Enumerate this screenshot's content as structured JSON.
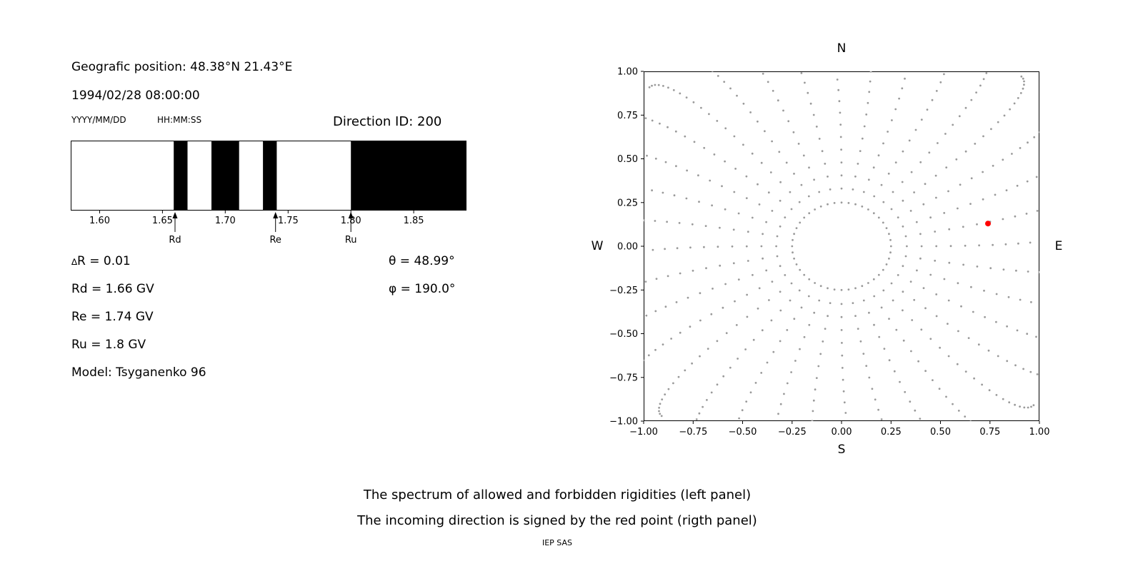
{
  "header": {
    "position": "Geografic position: 48.38°N 21.43°E",
    "datetime": "1994/02/28 08:00:00",
    "date_format_hint": "YYYY/MM/DD",
    "time_format_hint": "HH:MM:SS",
    "direction_id": "Direction ID: 200"
  },
  "params": {
    "delta_symbol": "∆",
    "delta_rest": "R = 0.01",
    "rd": "Rd = 1.66 GV",
    "re": "Re = 1.74 GV",
    "ru": "Ru = 1.8 GV",
    "model": "Model: Tsyganenko 96",
    "theta": "θ = 48.99°",
    "phi": "φ = 190.0°"
  },
  "caption": {
    "line1": "The spectrum of allowed and forbidden rigidities (left panel)",
    "line2": "The incoming direction is signed by the red point (rigth panel)",
    "credit": "IEP SAS"
  },
  "chart_data": [
    {
      "type": "bar",
      "subtype": "band-spectrum",
      "panel": "left",
      "description": "Allowed (white) and forbidden (black) rigidity bands in GV",
      "xlim": [
        1.577,
        1.892
      ],
      "xticks": [
        1.6,
        1.65,
        1.7,
        1.75,
        1.8,
        1.85
      ],
      "forbidden_bands_gv": [
        [
          1.659,
          1.67
        ],
        [
          1.689,
          1.711
        ],
        [
          1.73,
          1.741
        ],
        [
          1.8,
          1.892
        ]
      ],
      "markers": [
        {
          "label": "Rd",
          "x": 1.66
        },
        {
          "label": "Re",
          "x": 1.74
        },
        {
          "label": "Ru",
          "x": 1.8
        }
      ],
      "band_color": "#000000",
      "background": "#ffffff"
    },
    {
      "type": "scatter",
      "panel": "right",
      "description": "Asymptotic directions starburst; incoming direction marked by red point",
      "xlim": [
        -1.0,
        1.0
      ],
      "ylim": [
        -1.0,
        1.0
      ],
      "xticks": [
        -1.0,
        -0.75,
        -0.5,
        -0.25,
        0.0,
        0.25,
        0.5,
        0.75,
        1.0
      ],
      "yticks": [
        -1.0,
        -0.75,
        -0.5,
        -0.25,
        0.0,
        0.25,
        0.5,
        0.75,
        1.0
      ],
      "compass": {
        "top": "N",
        "right": "E",
        "bottom": "S",
        "left": "W"
      },
      "inner_ring": {
        "radius": 0.25,
        "dots": 44
      },
      "rays": {
        "count": 36,
        "start_angle_deg": 0,
        "step_deg": 10,
        "r_inner": 0.33,
        "r_outer": 1.33,
        "dots_per_ray": 22,
        "curve_rad": 0.12
      },
      "dot_color": "#9a9a9a",
      "red_point": {
        "x": 0.74,
        "y": 0.13,
        "color": "#ff0000"
      }
    }
  ]
}
